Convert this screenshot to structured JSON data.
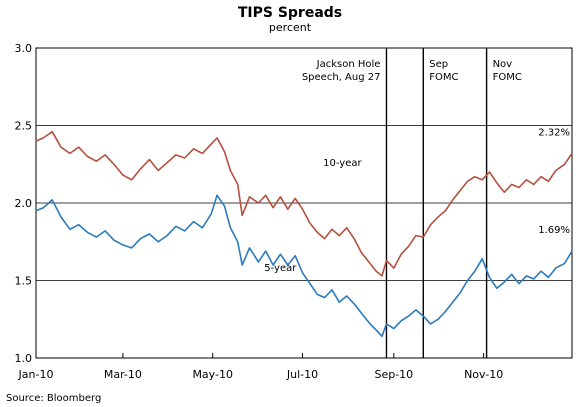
{
  "chart_data": {
    "type": "line",
    "title": "TIPS Spreads",
    "subtitle": "percent",
    "source": "Source: Bloomberg",
    "x_range": [
      "2010-01-01",
      "2010-12-31"
    ],
    "ylim": [
      1.0,
      3.0
    ],
    "y_ticks": [
      "1.0",
      "1.5",
      "2.0",
      "2.5",
      "3.0"
    ],
    "x_ticks": [
      {
        "label": "Jan-10",
        "date": "2010-01-01"
      },
      {
        "label": "Mar-10",
        "date": "2010-03-01"
      },
      {
        "label": "May-10",
        "date": "2010-05-01"
      },
      {
        "label": "Jul-10",
        "date": "2010-07-01"
      },
      {
        "label": "Sep-10",
        "date": "2010-09-01"
      },
      {
        "label": "Nov-10",
        "date": "2010-11-01"
      }
    ],
    "grid": "horizontal",
    "event_lines": [
      {
        "date": "2010-08-27",
        "text": [
          "Jackson Hole",
          "Speech, Aug 27"
        ]
      },
      {
        "date": "2010-09-21",
        "text": [
          "Sep",
          "FOMC"
        ]
      },
      {
        "date": "2010-11-03",
        "text": [
          "Nov",
          "FOMC"
        ]
      }
    ],
    "series": [
      {
        "name": "10-year",
        "color": "#b5503f",
        "end_label": "2.32%",
        "points": [
          [
            "2010-01-01",
            2.4
          ],
          [
            "2010-01-06",
            2.42
          ],
          [
            "2010-01-12",
            2.46
          ],
          [
            "2010-01-18",
            2.36
          ],
          [
            "2010-01-24",
            2.32
          ],
          [
            "2010-01-30",
            2.36
          ],
          [
            "2010-02-05",
            2.3
          ],
          [
            "2010-02-11",
            2.27
          ],
          [
            "2010-02-17",
            2.31
          ],
          [
            "2010-02-23",
            2.25
          ],
          [
            "2010-03-01",
            2.18
          ],
          [
            "2010-03-07",
            2.15
          ],
          [
            "2010-03-13",
            2.22
          ],
          [
            "2010-03-19",
            2.28
          ],
          [
            "2010-03-25",
            2.21
          ],
          [
            "2010-03-31",
            2.26
          ],
          [
            "2010-04-06",
            2.31
          ],
          [
            "2010-04-12",
            2.29
          ],
          [
            "2010-04-18",
            2.35
          ],
          [
            "2010-04-24",
            2.32
          ],
          [
            "2010-04-30",
            2.38
          ],
          [
            "2010-05-04",
            2.42
          ],
          [
            "2010-05-09",
            2.33
          ],
          [
            "2010-05-13",
            2.21
          ],
          [
            "2010-05-18",
            2.12
          ],
          [
            "2010-05-21",
            1.92
          ],
          [
            "2010-05-26",
            2.04
          ],
          [
            "2010-06-01",
            2.0
          ],
          [
            "2010-06-06",
            2.05
          ],
          [
            "2010-06-11",
            1.97
          ],
          [
            "2010-06-16",
            2.04
          ],
          [
            "2010-06-21",
            1.96
          ],
          [
            "2010-06-26",
            2.03
          ],
          [
            "2010-07-01",
            1.96
          ],
          [
            "2010-07-06",
            1.87
          ],
          [
            "2010-07-11",
            1.81
          ],
          [
            "2010-07-16",
            1.77
          ],
          [
            "2010-07-21",
            1.83
          ],
          [
            "2010-07-26",
            1.79
          ],
          [
            "2010-07-31",
            1.84
          ],
          [
            "2010-08-05",
            1.77
          ],
          [
            "2010-08-10",
            1.68
          ],
          [
            "2010-08-15",
            1.62
          ],
          [
            "2010-08-20",
            1.56
          ],
          [
            "2010-08-24",
            1.53
          ],
          [
            "2010-08-27",
            1.63
          ],
          [
            "2010-09-01",
            1.58
          ],
          [
            "2010-09-06",
            1.67
          ],
          [
            "2010-09-11",
            1.72
          ],
          [
            "2010-09-16",
            1.79
          ],
          [
            "2010-09-21",
            1.78
          ],
          [
            "2010-09-26",
            1.86
          ],
          [
            "2010-10-01",
            1.91
          ],
          [
            "2010-10-06",
            1.95
          ],
          [
            "2010-10-11",
            2.02
          ],
          [
            "2010-10-16",
            2.08
          ],
          [
            "2010-10-21",
            2.14
          ],
          [
            "2010-10-26",
            2.17
          ],
          [
            "2010-10-31",
            2.15
          ],
          [
            "2010-11-05",
            2.2
          ],
          [
            "2010-11-10",
            2.13
          ],
          [
            "2010-11-15",
            2.07
          ],
          [
            "2010-11-20",
            2.12
          ],
          [
            "2010-11-25",
            2.1
          ],
          [
            "2010-11-30",
            2.15
          ],
          [
            "2010-12-05",
            2.12
          ],
          [
            "2010-12-10",
            2.17
          ],
          [
            "2010-12-15",
            2.14
          ],
          [
            "2010-12-20",
            2.21
          ],
          [
            "2010-12-26",
            2.25
          ],
          [
            "2010-12-31",
            2.32
          ]
        ]
      },
      {
        "name": "5-year",
        "color": "#2b7bbd",
        "end_label": "1.69%",
        "points": [
          [
            "2010-01-01",
            1.95
          ],
          [
            "2010-01-06",
            1.97
          ],
          [
            "2010-01-12",
            2.02
          ],
          [
            "2010-01-18",
            1.91
          ],
          [
            "2010-01-24",
            1.83
          ],
          [
            "2010-01-30",
            1.86
          ],
          [
            "2010-02-05",
            1.81
          ],
          [
            "2010-02-11",
            1.78
          ],
          [
            "2010-02-17",
            1.82
          ],
          [
            "2010-02-23",
            1.76
          ],
          [
            "2010-03-01",
            1.73
          ],
          [
            "2010-03-07",
            1.71
          ],
          [
            "2010-03-13",
            1.77
          ],
          [
            "2010-03-19",
            1.8
          ],
          [
            "2010-03-25",
            1.75
          ],
          [
            "2010-03-31",
            1.79
          ],
          [
            "2010-04-06",
            1.85
          ],
          [
            "2010-04-12",
            1.82
          ],
          [
            "2010-04-18",
            1.88
          ],
          [
            "2010-04-24",
            1.84
          ],
          [
            "2010-04-30",
            1.93
          ],
          [
            "2010-05-04",
            2.05
          ],
          [
            "2010-05-09",
            1.98
          ],
          [
            "2010-05-13",
            1.84
          ],
          [
            "2010-05-18",
            1.75
          ],
          [
            "2010-05-21",
            1.6
          ],
          [
            "2010-05-26",
            1.71
          ],
          [
            "2010-06-01",
            1.62
          ],
          [
            "2010-06-06",
            1.69
          ],
          [
            "2010-06-11",
            1.6
          ],
          [
            "2010-06-16",
            1.67
          ],
          [
            "2010-06-21",
            1.6
          ],
          [
            "2010-06-26",
            1.66
          ],
          [
            "2010-07-01",
            1.55
          ],
          [
            "2010-07-06",
            1.48
          ],
          [
            "2010-07-11",
            1.41
          ],
          [
            "2010-07-16",
            1.39
          ],
          [
            "2010-07-21",
            1.44
          ],
          [
            "2010-07-26",
            1.36
          ],
          [
            "2010-07-31",
            1.4
          ],
          [
            "2010-08-05",
            1.35
          ],
          [
            "2010-08-10",
            1.29
          ],
          [
            "2010-08-15",
            1.23
          ],
          [
            "2010-08-20",
            1.18
          ],
          [
            "2010-08-24",
            1.14
          ],
          [
            "2010-08-27",
            1.22
          ],
          [
            "2010-09-01",
            1.19
          ],
          [
            "2010-09-06",
            1.24
          ],
          [
            "2010-09-11",
            1.27
          ],
          [
            "2010-09-16",
            1.31
          ],
          [
            "2010-09-21",
            1.27
          ],
          [
            "2010-09-26",
            1.22
          ],
          [
            "2010-10-01",
            1.25
          ],
          [
            "2010-10-06",
            1.3
          ],
          [
            "2010-10-11",
            1.36
          ],
          [
            "2010-10-16",
            1.42
          ],
          [
            "2010-10-21",
            1.5
          ],
          [
            "2010-10-26",
            1.56
          ],
          [
            "2010-10-31",
            1.64
          ],
          [
            "2010-11-05",
            1.52
          ],
          [
            "2010-11-10",
            1.45
          ],
          [
            "2010-11-15",
            1.49
          ],
          [
            "2010-11-20",
            1.54
          ],
          [
            "2010-11-25",
            1.48
          ],
          [
            "2010-11-30",
            1.53
          ],
          [
            "2010-12-05",
            1.51
          ],
          [
            "2010-12-10",
            1.56
          ],
          [
            "2010-12-15",
            1.52
          ],
          [
            "2010-12-20",
            1.58
          ],
          [
            "2010-12-26",
            1.61
          ],
          [
            "2010-12-31",
            1.69
          ]
        ]
      }
    ],
    "series_labels": [
      {
        "series": 0,
        "text": "10-year",
        "date": "2010-07-15",
        "value": 2.24
      },
      {
        "series": 1,
        "text": "5-year",
        "date": "2010-06-05",
        "value": 1.56
      }
    ]
  }
}
